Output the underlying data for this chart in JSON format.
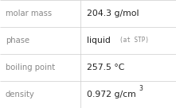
{
  "rows": [
    {
      "label": "molar mass",
      "value": "204.3 g/mol",
      "extra": null,
      "superscript": false
    },
    {
      "label": "phase",
      "value": "liquid",
      "extra": "at STP",
      "superscript": false
    },
    {
      "label": "boiling point",
      "value": "257.5 °C",
      "extra": null,
      "superscript": false
    },
    {
      "label": "density",
      "value": "0.972 g/cm",
      "extra": "3",
      "superscript": true
    }
  ],
  "bg_color": "#f7f7f7",
  "cell_bg": "#ffffff",
  "border_color": "#cccccc",
  "label_color": "#888888",
  "value_color": "#222222",
  "extra_color": "#888888",
  "col_split": 0.455,
  "label_fontsize": 7.2,
  "value_fontsize": 7.8,
  "extra_fontsize": 5.5
}
